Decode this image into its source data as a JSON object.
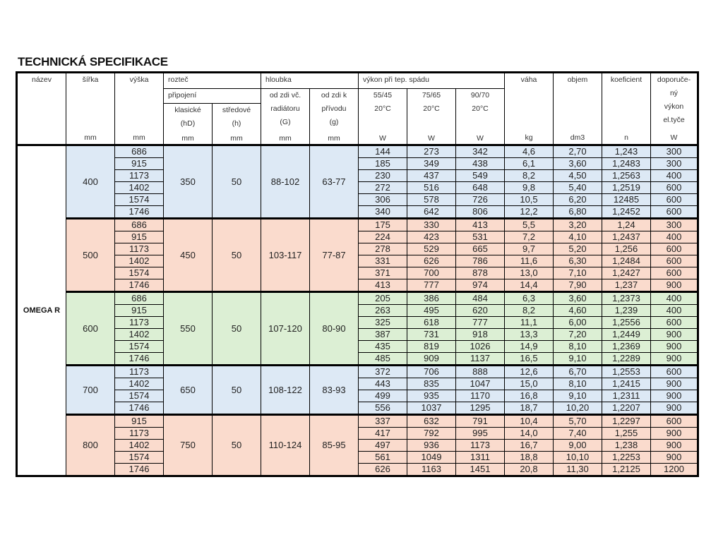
{
  "title": "TECHNICKÁ SPECIFIKACE",
  "colors": {
    "blue": "#dde9f5",
    "salmon": "#fadbcd",
    "green": "#dcefd4",
    "border": "#000000"
  },
  "header": {
    "nazev": "název",
    "sirka": "šířka",
    "sirka_unit": "mm",
    "vyska": "výška",
    "vyska_unit": "mm",
    "roztec": "rozteč",
    "pripojeni": "připojení",
    "klasicke": "klasické",
    "klasicke_sym": "(hD)",
    "klasicke_unit": "mm",
    "stredove": "středové",
    "stredove_sym": "(h)",
    "stredove_unit": "mm",
    "hloubka": "hloubka",
    "od_zdi_vc": "od zdi  vč.",
    "od_zdi_vc_2": "radiátoru",
    "od_zdi_vc_sym": "(G)",
    "od_zdi_vc_unit": "mm",
    "od_zdi_k": "od zdi  k",
    "od_zdi_k_2": "přívodu",
    "od_zdi_k_sym": "(g)",
    "od_zdi_k_unit": "mm",
    "vykon_1": "výkon při",
    "vykon_2": "tep.  spádu",
    "t1": "55/45",
    "t2": "75/65",
    "t3": "90/70",
    "temp": "20°C",
    "w_unit": "W",
    "vaha": "váha",
    "vaha_unit": "kg",
    "objem": "objem",
    "objem_unit": "dm3",
    "koeficient": "koeficient",
    "koeficient_unit": "n",
    "dop_1": "doporuče-",
    "dop_2": "ný",
    "dop_3": "výkon",
    "dop_4": "el.tyče",
    "dop_unit": "W"
  },
  "model": "OMEGA R",
  "groups": [
    {
      "sirka": "400",
      "klasicke": "350",
      "stredove": "50",
      "G": "88-102",
      "g": "63-77",
      "color": "blue",
      "rows": [
        [
          "686",
          "144",
          "273",
          "342",
          "4,6",
          "2,70",
          "1,243",
          "300"
        ],
        [
          "915",
          "185",
          "349",
          "438",
          "6,1",
          "3,60",
          "1,2483",
          "300"
        ],
        [
          "1173",
          "230",
          "437",
          "549",
          "8,2",
          "4,50",
          "1,2563",
          "400"
        ],
        [
          "1402",
          "272",
          "516",
          "648",
          "9,8",
          "5,40",
          "1,2519",
          "600"
        ],
        [
          "1574",
          "306",
          "578",
          "726",
          "10,5",
          "6,20",
          "12485",
          "600"
        ],
        [
          "1746",
          "340",
          "642",
          "806",
          "12,2",
          "6,80",
          "1,2452",
          "600"
        ]
      ]
    },
    {
      "sirka": "500",
      "klasicke": "450",
      "stredove": "50",
      "G": "103-117",
      "g": "77-87",
      "color": "salmon",
      "rows": [
        [
          "686",
          "175",
          "330",
          "413",
          "5,5",
          "3,20",
          "1,24",
          "300"
        ],
        [
          "915",
          "224",
          "423",
          "531",
          "7,2",
          "4,10",
          "1,2437",
          "400"
        ],
        [
          "1173",
          "278",
          "529",
          "665",
          "9,7",
          "5,20",
          "1,256",
          "600"
        ],
        [
          "1402",
          "331",
          "626",
          "786",
          "11,6",
          "6,30",
          "1,2484",
          "600"
        ],
        [
          "1574",
          "371",
          "700",
          "878",
          "13,0",
          "7,10",
          "1,2427",
          "600"
        ],
        [
          "1746",
          "413",
          "777",
          "974",
          "14,4",
          "7,90",
          "1,237",
          "900"
        ]
      ]
    },
    {
      "sirka": "600",
      "klasicke": "550",
      "stredove": "50",
      "G": "107-120",
      "g": "80-90",
      "color": "green",
      "rows": [
        [
          "686",
          "205",
          "386",
          "484",
          "6,3",
          "3,60",
          "1,2373",
          "400"
        ],
        [
          "915",
          "263",
          "495",
          "620",
          "8,2",
          "4,60",
          "1,239",
          "400"
        ],
        [
          "1173",
          "325",
          "618",
          "777",
          "11,1",
          "6,00",
          "1,2556",
          "600"
        ],
        [
          "1402",
          "387",
          "731",
          "918",
          "13,3",
          "7,20",
          "1,2449",
          "900"
        ],
        [
          "1574",
          "435",
          "819",
          "1026",
          "14,9",
          "8,10",
          "1,2369",
          "900"
        ],
        [
          "1746",
          "485",
          "909",
          "1137",
          "16,5",
          "9,10",
          "1,2289",
          "900"
        ]
      ]
    },
    {
      "sirka": "700",
      "klasicke": "650",
      "stredove": "50",
      "G": "108-122",
      "g": "83-93",
      "color": "blue",
      "rows": [
        [
          "1173",
          "372",
          "706",
          "888",
          "12,6",
          "6,70",
          "1,2553",
          "600"
        ],
        [
          "1402",
          "443",
          "835",
          "1047",
          "15,0",
          "8,10",
          "1,2415",
          "900"
        ],
        [
          "1574",
          "499",
          "935",
          "1170",
          "16,8",
          "9,10",
          "1,2311",
          "900"
        ],
        [
          "1746",
          "556",
          "1037",
          "1295",
          "18,7",
          "10,20",
          "1,2207",
          "900"
        ]
      ]
    },
    {
      "sirka": "800",
      "klasicke": "750",
      "stredove": "50",
      "G": "110-124",
      "g": "85-95",
      "color": "salmon",
      "rows": [
        [
          "915",
          "337",
          "632",
          "791",
          "10,4",
          "5,70",
          "1,2297",
          "600"
        ],
        [
          "1173",
          "417",
          "792",
          "995",
          "14,0",
          "7,40",
          "1,255",
          "900"
        ],
        [
          "1402",
          "497",
          "936",
          "1173",
          "16,7",
          "9,00",
          "1,238",
          "900"
        ],
        [
          "1574",
          "561",
          "1049",
          "1311",
          "18,8",
          "10,10",
          "1,2253",
          "900"
        ],
        [
          "1746",
          "626",
          "1163",
          "1451",
          "20,8",
          "11,30",
          "1,2125",
          "1200"
        ]
      ]
    }
  ]
}
